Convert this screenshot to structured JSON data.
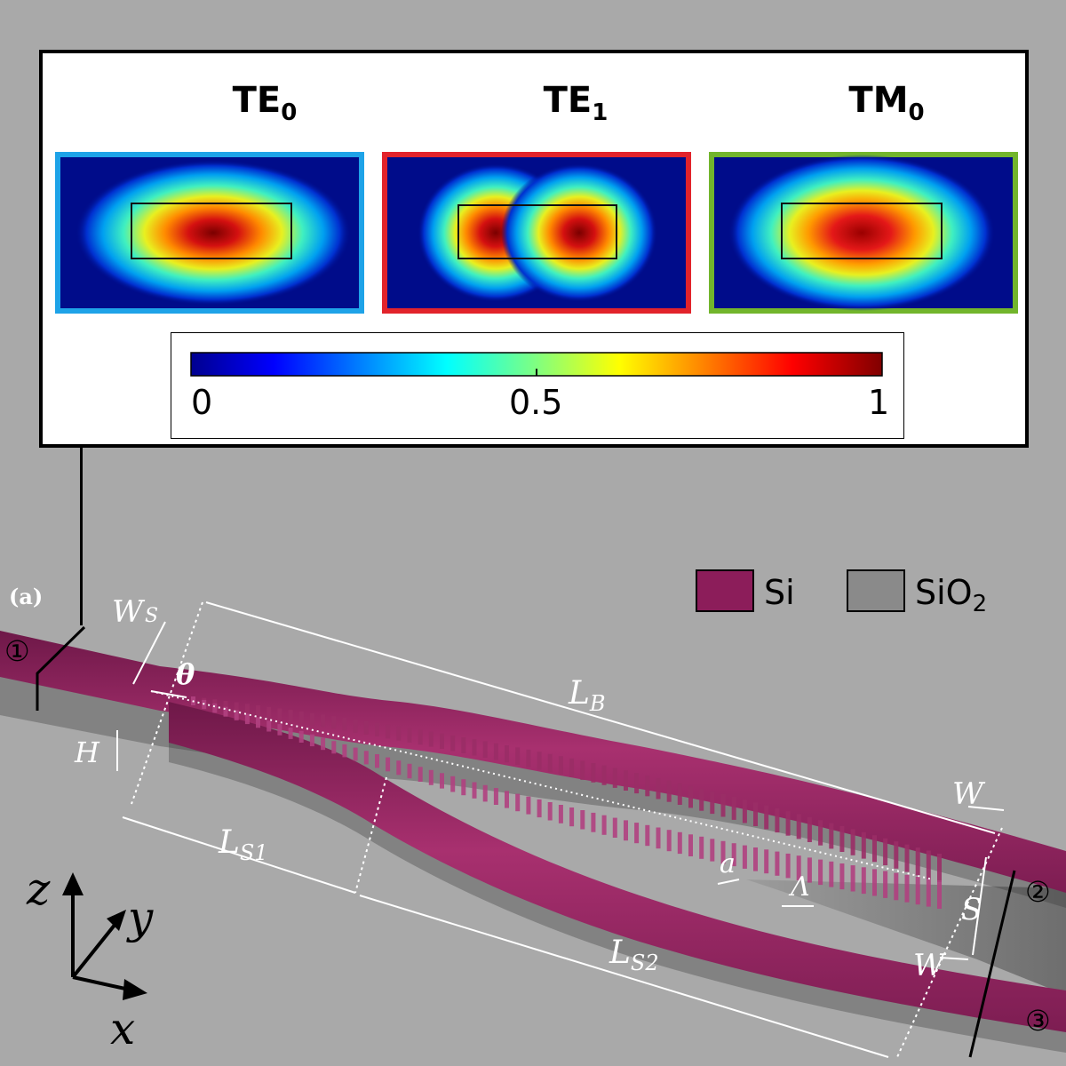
{
  "inset": {
    "modes": [
      {
        "name": "TE",
        "sub": "0",
        "border_color": "#1ea3e8"
      },
      {
        "name": "TE",
        "sub": "1",
        "border_color": "#e2232b"
      },
      {
        "name": "TM",
        "sub": "0",
        "border_color": "#72b52c"
      }
    ],
    "colorbar": {
      "ticks": [
        "0",
        "0.5",
        "1"
      ],
      "colormap": "jet"
    }
  },
  "figure": {
    "panel_label": "(a)",
    "legend": [
      {
        "label": "Si",
        "color": "#8c1d5a"
      },
      {
        "label": "SiO",
        "sub": "2",
        "color": "#8a8a8a"
      }
    ],
    "ports": [
      "①",
      "②",
      "③"
    ],
    "dim_labels": {
      "ws_main": "W",
      "ws_sub": "S",
      "theta": "θ",
      "h": "H",
      "lb_main": "L",
      "lb_sub": "B",
      "ls1_main": "L",
      "ls1_sub": "S1",
      "ls2_main": "L",
      "ls2_sub": "S2",
      "w_top": "W",
      "w_bottom": "W",
      "s": "S",
      "a": "a",
      "lambda": "Λ"
    },
    "axes": [
      "z",
      "y",
      "x"
    ]
  }
}
